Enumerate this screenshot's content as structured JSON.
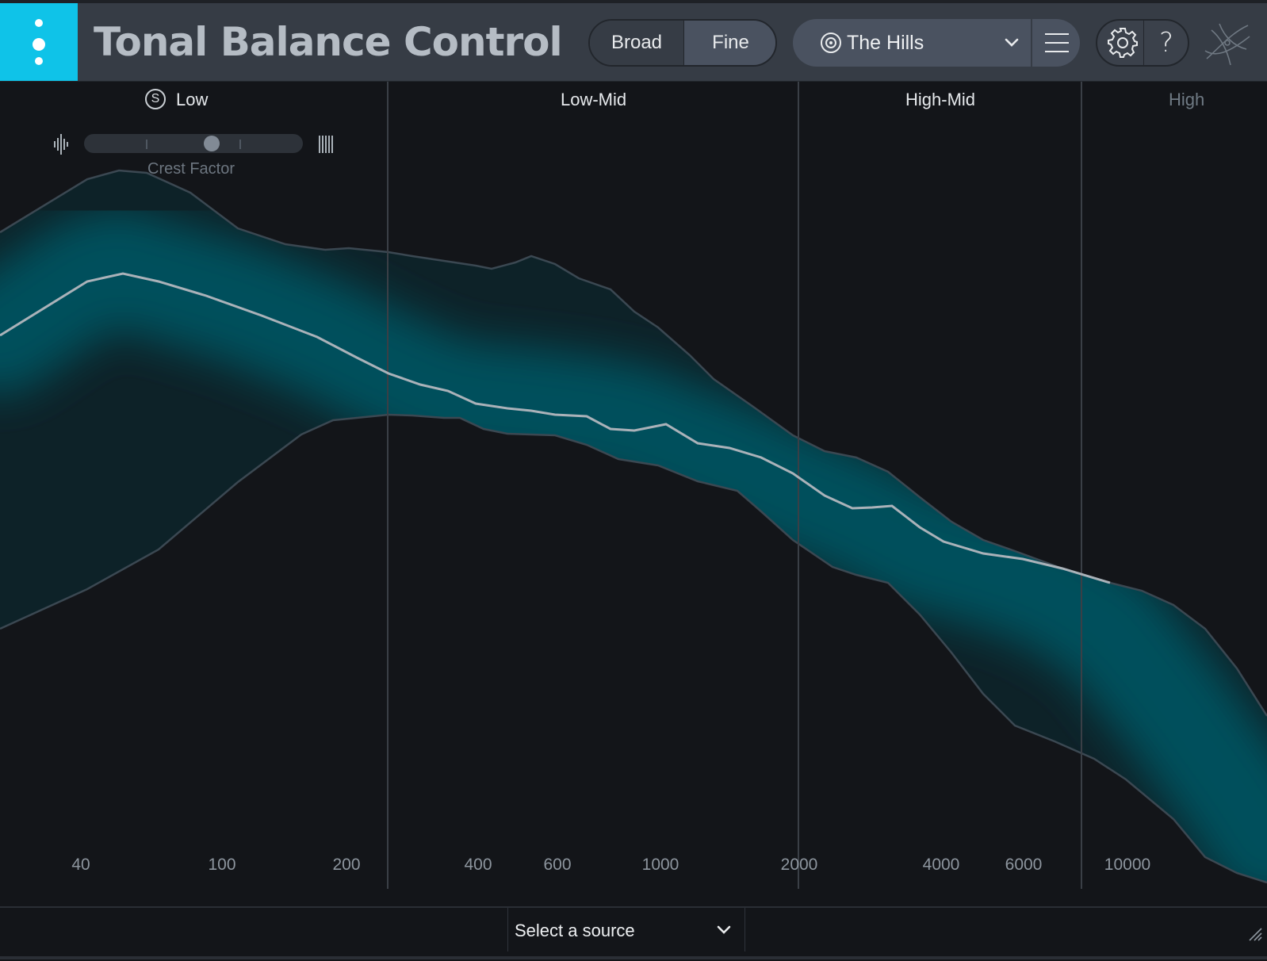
{
  "header": {
    "title": "Tonal Balance Control",
    "mode_toggle": {
      "broad_label": "Broad",
      "fine_label": "Fine",
      "selected": "Fine"
    },
    "target": {
      "label": "The Hills",
      "icon": "target-icon"
    },
    "menu_icon": "hamburger-icon",
    "settings_icon": "gear-icon",
    "help_label": "?",
    "logo_icon": "izotope-logo-icon",
    "accent_color": "#0fc3e8"
  },
  "bands": [
    {
      "label": "Low",
      "solo_label": "S"
    },
    {
      "label": "Low-Mid"
    },
    {
      "label": "High-Mid"
    },
    {
      "label": "High"
    }
  ],
  "crest_factor": {
    "label": "Crest Factor",
    "left_icon": "transient-waveform-icon",
    "right_icon": "compressed-waveform-icon",
    "value_fraction": 0.59
  },
  "freq_axis": {
    "labels": [
      "40",
      "100",
      "200",
      "400",
      "600",
      "1000",
      "2000",
      "4000",
      "6000",
      "10000"
    ]
  },
  "footer": {
    "source_label": "Select a source",
    "resize_icon": "resize-grip-icon"
  },
  "colors": {
    "band_fill": "#00505c",
    "target_line": "#aeb6bd",
    "band_edge": "#3a4650"
  }
}
